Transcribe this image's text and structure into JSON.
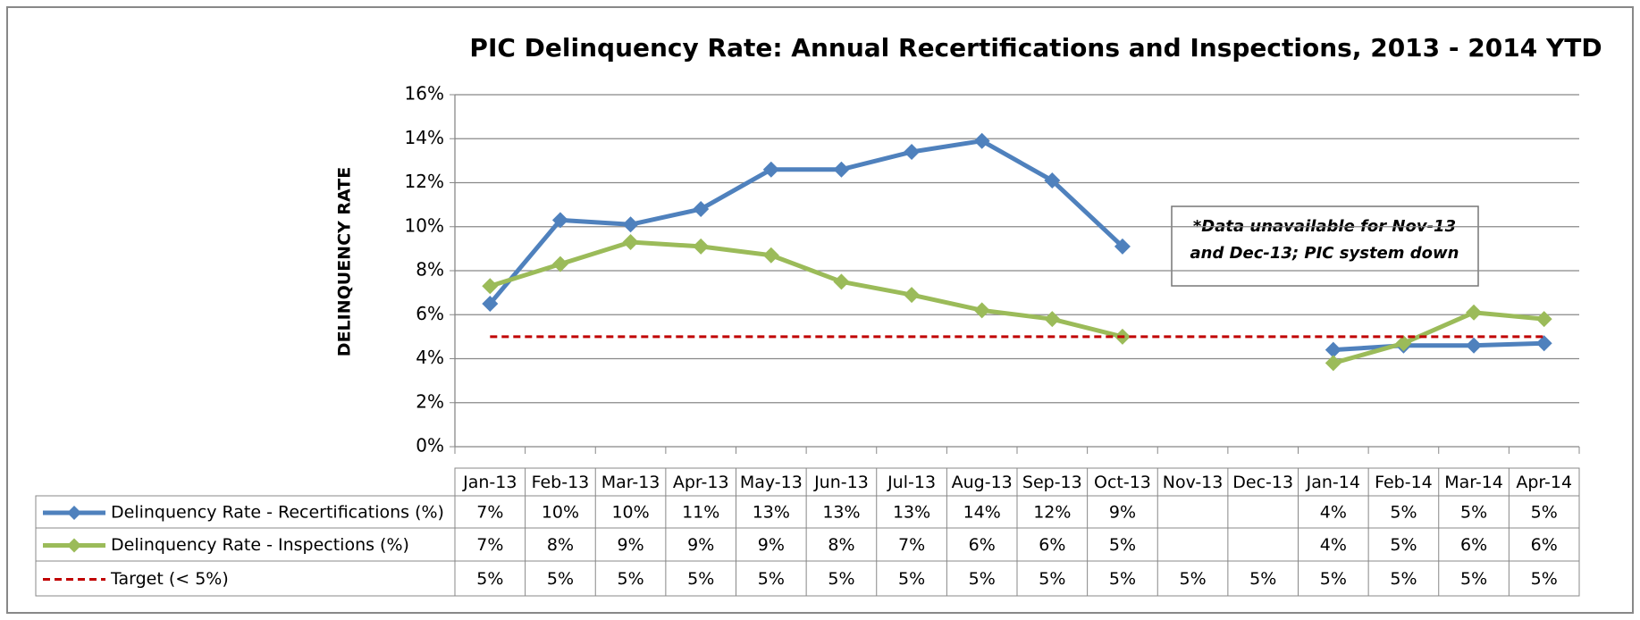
{
  "chart_data": {
    "type": "line",
    "title": "PIC Delinquency Rate: Annual Recertifications and Inspections, 2013 - 2014 YTD",
    "y_label": "DELINQUENCY RATE",
    "annotation": [
      "*Data unavailable for Nov-13",
      "and Dec-13; PIC system down"
    ],
    "categories": [
      "Jan-13",
      "Feb-13",
      "Mar-13",
      "Apr-13",
      "May-13",
      "Jun-13",
      "Jul-13",
      "Aug-13",
      "Sep-13",
      "Oct-13",
      "Nov-13",
      "Dec-13",
      "Jan-14",
      "Feb-14",
      "Mar-14",
      "Apr-14"
    ],
    "series": [
      {
        "name": "Delinquency Rate - Recertifications (%)",
        "color": "#4f81bd",
        "marker": "diamond",
        "values": [
          6.5,
          10.3,
          10.1,
          10.8,
          12.6,
          12.6,
          13.4,
          13.9,
          12.1,
          9.1,
          null,
          null,
          4.4,
          4.6,
          4.6,
          4.7
        ],
        "value_labels": [
          "7%",
          "10%",
          "10%",
          "11%",
          "13%",
          "13%",
          "13%",
          "14%",
          "12%",
          "9%",
          null,
          null,
          "4%",
          "5%",
          "5%",
          "5%"
        ]
      },
      {
        "name": "Delinquency Rate - Inspections (%)",
        "color": "#9bbb59",
        "marker": "diamond",
        "values": [
          7.3,
          8.3,
          9.3,
          9.1,
          8.7,
          7.5,
          6.9,
          6.2,
          5.8,
          5.0,
          null,
          null,
          3.8,
          4.7,
          6.1,
          5.8
        ],
        "value_labels": [
          "7%",
          "8%",
          "9%",
          "9%",
          "9%",
          "8%",
          "7%",
          "6%",
          "6%",
          "5%",
          null,
          null,
          "4%",
          "5%",
          "6%",
          "6%"
        ]
      },
      {
        "name": "Target (< 5%)",
        "color": "#c00000",
        "dashed": true,
        "values": [
          5,
          5,
          5,
          5,
          5,
          5,
          5,
          5,
          5,
          5,
          5,
          5,
          5,
          5,
          5,
          5
        ],
        "value_labels": [
          "5%",
          "5%",
          "5%",
          "5%",
          "5%",
          "5%",
          "5%",
          "5%",
          "5%",
          "5%",
          "5%",
          "5%",
          "5%",
          "5%",
          "5%",
          "5%"
        ]
      }
    ],
    "ylim": [
      0,
      16
    ],
    "yticks": [
      {
        "value": 0,
        "label": "0%"
      },
      {
        "value": 2,
        "label": "2%"
      },
      {
        "value": 4,
        "label": "4%"
      },
      {
        "value": 6,
        "label": "6%"
      },
      {
        "value": 8,
        "label": "8%"
      },
      {
        "value": 10,
        "label": "10%"
      },
      {
        "value": 12,
        "label": "12%"
      },
      {
        "value": 14,
        "label": "14%"
      },
      {
        "value": 16,
        "label": "16%"
      }
    ],
    "grid": true
  }
}
